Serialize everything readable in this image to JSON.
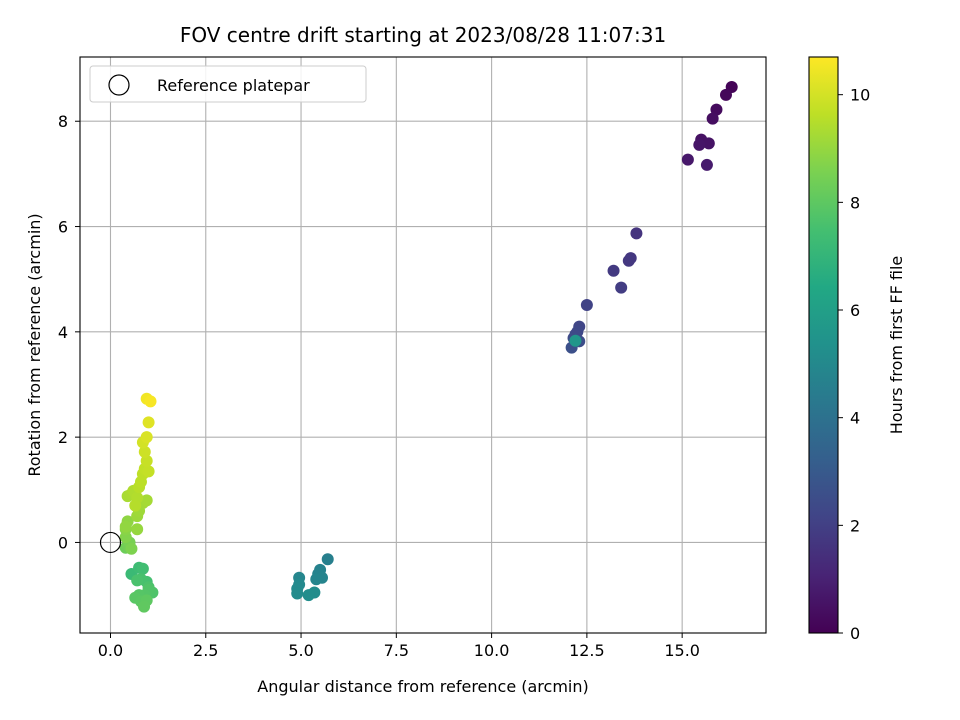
{
  "chart_data": {
    "type": "scatter",
    "title": "FOV centre drift starting at 2023/08/28 11:07:31",
    "xlabel": "Angular distance from reference (arcmin)",
    "ylabel": "Rotation from reference (arcmin)",
    "xlim": [
      -0.8,
      17.2
    ],
    "ylim": [
      -1.72,
      9.22
    ],
    "xticks": [
      "0.0",
      "2.5",
      "5.0",
      "7.5",
      "10.0",
      "12.5",
      "15.0"
    ],
    "yticks": [
      "0",
      "2",
      "4",
      "6",
      "8"
    ],
    "grid": true,
    "legend": {
      "placement": "top-left",
      "entries": [
        "Reference platepar"
      ]
    },
    "reference_point": {
      "x": 0.0,
      "y": 0.0,
      "marker": "open-circle"
    },
    "colorbar": {
      "label": "Hours from first FF file",
      "colormap": "viridis",
      "range": [
        0,
        10.7
      ],
      "ticks": [
        "0",
        "2",
        "4",
        "6",
        "8",
        "10"
      ]
    },
    "points": [
      {
        "x": 16.3,
        "y": 8.65,
        "c": 0.1
      },
      {
        "x": 16.15,
        "y": 8.5,
        "c": 0.2
      },
      {
        "x": 15.9,
        "y": 8.22,
        "c": 0.3
      },
      {
        "x": 15.8,
        "y": 8.05,
        "c": 0.4
      },
      {
        "x": 15.5,
        "y": 7.65,
        "c": 0.5
      },
      {
        "x": 15.7,
        "y": 7.58,
        "c": 0.55
      },
      {
        "x": 15.45,
        "y": 7.55,
        "c": 0.6
      },
      {
        "x": 15.15,
        "y": 7.27,
        "c": 0.7
      },
      {
        "x": 15.65,
        "y": 7.17,
        "c": 0.8
      },
      {
        "x": 13.8,
        "y": 5.87,
        "c": 1.6
      },
      {
        "x": 13.65,
        "y": 5.4,
        "c": 1.7
      },
      {
        "x": 13.6,
        "y": 5.35,
        "c": 1.75
      },
      {
        "x": 13.2,
        "y": 5.16,
        "c": 1.8
      },
      {
        "x": 13.4,
        "y": 4.84,
        "c": 1.9
      },
      {
        "x": 12.5,
        "y": 4.51,
        "c": 2.1
      },
      {
        "x": 12.3,
        "y": 4.1,
        "c": 2.2
      },
      {
        "x": 12.25,
        "y": 4.0,
        "c": 2.3
      },
      {
        "x": 12.2,
        "y": 3.95,
        "c": 2.35
      },
      {
        "x": 12.15,
        "y": 3.88,
        "c": 2.4
      },
      {
        "x": 12.3,
        "y": 3.82,
        "c": 2.5
      },
      {
        "x": 12.1,
        "y": 3.7,
        "c": 2.6
      },
      {
        "x": 12.2,
        "y": 3.83,
        "c": 5.6
      },
      {
        "x": 5.7,
        "y": -0.32,
        "c": 4.6
      },
      {
        "x": 5.5,
        "y": -0.52,
        "c": 4.7
      },
      {
        "x": 5.45,
        "y": -0.6,
        "c": 4.75
      },
      {
        "x": 5.55,
        "y": -0.67,
        "c": 4.8
      },
      {
        "x": 5.4,
        "y": -0.7,
        "c": 4.85
      },
      {
        "x": 4.95,
        "y": -0.67,
        "c": 4.9
      },
      {
        "x": 4.95,
        "y": -0.8,
        "c": 5.0
      },
      {
        "x": 4.9,
        "y": -0.88,
        "c": 5.05
      },
      {
        "x": 4.9,
        "y": -0.97,
        "c": 5.1
      },
      {
        "x": 5.35,
        "y": -0.95,
        "c": 5.15
      },
      {
        "x": 5.2,
        "y": -1.0,
        "c": 5.2
      },
      {
        "x": 0.55,
        "y": -0.6,
        "c": 7.2
      },
      {
        "x": 0.75,
        "y": -0.48,
        "c": 7.3
      },
      {
        "x": 0.85,
        "y": -0.5,
        "c": 7.4
      },
      {
        "x": 0.95,
        "y": -0.75,
        "c": 7.5
      },
      {
        "x": 0.8,
        "y": -0.7,
        "c": 7.55
      },
      {
        "x": 0.7,
        "y": -0.72,
        "c": 7.6
      },
      {
        "x": 1.0,
        "y": -0.85,
        "c": 7.65
      },
      {
        "x": 1.1,
        "y": -0.95,
        "c": 7.7
      },
      {
        "x": 1.0,
        "y": -0.9,
        "c": 7.75
      },
      {
        "x": 0.9,
        "y": -1.0,
        "c": 7.8
      },
      {
        "x": 0.75,
        "y": -1.0,
        "c": 7.85
      },
      {
        "x": 0.65,
        "y": -1.05,
        "c": 7.9
      },
      {
        "x": 0.8,
        "y": -1.12,
        "c": 7.95
      },
      {
        "x": 0.95,
        "y": -1.1,
        "c": 8.0
      },
      {
        "x": 0.88,
        "y": -1.22,
        "c": 8.05
      },
      {
        "x": 0.4,
        "y": -0.1,
        "c": 8.3
      },
      {
        "x": 0.45,
        "y": -0.05,
        "c": 8.4
      },
      {
        "x": 0.5,
        "y": 0.0,
        "c": 8.5
      },
      {
        "x": 0.55,
        "y": -0.12,
        "c": 8.6
      },
      {
        "x": 0.4,
        "y": 0.1,
        "c": 8.7
      },
      {
        "x": 0.4,
        "y": 0.25,
        "c": 8.8
      },
      {
        "x": 0.45,
        "y": 0.4,
        "c": 8.9
      },
      {
        "x": 0.4,
        "y": 0.3,
        "c": 8.95
      },
      {
        "x": 0.7,
        "y": 0.25,
        "c": 9.0
      },
      {
        "x": 0.7,
        "y": 0.5,
        "c": 9.1
      },
      {
        "x": 0.75,
        "y": 0.6,
        "c": 9.15
      },
      {
        "x": 0.85,
        "y": 0.75,
        "c": 9.2
      },
      {
        "x": 0.95,
        "y": 0.8,
        "c": 9.25
      },
      {
        "x": 0.45,
        "y": 0.88,
        "c": 9.3
      },
      {
        "x": 0.55,
        "y": 0.92,
        "c": 9.35
      },
      {
        "x": 0.6,
        "y": 0.98,
        "c": 9.4
      },
      {
        "x": 0.7,
        "y": 0.85,
        "c": 9.45
      },
      {
        "x": 0.65,
        "y": 0.7,
        "c": 9.5
      },
      {
        "x": 0.75,
        "y": 1.05,
        "c": 9.55
      },
      {
        "x": 0.8,
        "y": 1.15,
        "c": 9.6
      },
      {
        "x": 0.85,
        "y": 1.3,
        "c": 9.65
      },
      {
        "x": 0.9,
        "y": 1.4,
        "c": 9.7
      },
      {
        "x": 1.0,
        "y": 1.35,
        "c": 9.75
      },
      {
        "x": 0.95,
        "y": 1.55,
        "c": 9.8
      },
      {
        "x": 0.9,
        "y": 1.72,
        "c": 9.9
      },
      {
        "x": 0.85,
        "y": 1.9,
        "c": 10.0
      },
      {
        "x": 0.95,
        "y": 2.0,
        "c": 10.1
      },
      {
        "x": 1.0,
        "y": 2.28,
        "c": 10.2
      },
      {
        "x": 0.95,
        "y": 2.73,
        "c": 10.5
      },
      {
        "x": 1.05,
        "y": 2.68,
        "c": 10.6
      }
    ]
  }
}
